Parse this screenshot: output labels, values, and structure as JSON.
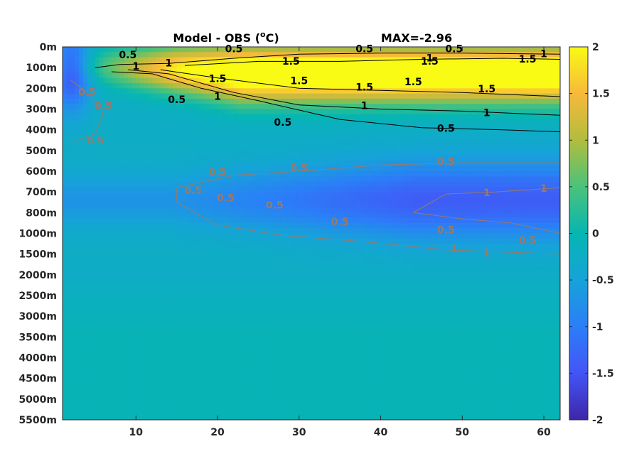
{
  "chart_data": {
    "type": "heatmap",
    "title": "Model - OBS (",
    "title_superscript": "o",
    "title_unit": "C)",
    "annotation": "MAX=-2.96",
    "y_tick_labels": [
      "0m",
      "100m",
      "200m",
      "300m",
      "400m",
      "500m",
      "600m",
      "700m",
      "800m",
      "1000m",
      "1500m",
      "2000m",
      "2500m",
      "3000m",
      "3500m",
      "4000m",
      "4500m",
      "5000m",
      "5500m"
    ],
    "xlim": [
      1,
      62
    ],
    "x_ticks": [
      10,
      20,
      30,
      40,
      50,
      60
    ],
    "clim": [
      -2,
      2
    ],
    "colorbar_ticks": [
      {
        "value": 2,
        "label": "2"
      },
      {
        "value": 1.5,
        "label": "1.5"
      },
      {
        "value": 1,
        "label": "1"
      },
      {
        "value": 0.5,
        "label": "0.5"
      },
      {
        "value": 0,
        "label": "0"
      },
      {
        "value": -0.5,
        "label": "-0.5"
      },
      {
        "value": -1,
        "label": "-1"
      },
      {
        "value": -1.5,
        "label": "-1.5"
      },
      {
        "value": -2,
        "label": "-2"
      }
    ],
    "colormap": "parula",
    "contour_colors": {
      "positive": "#000000",
      "negative": "#9a7a6a"
    },
    "contour_labels_positive": [
      {
        "x": 9,
        "level": 0.5,
        "label": "0.5"
      },
      {
        "x": 22,
        "level": 0.5,
        "label": "0.5"
      },
      {
        "x": 38,
        "level": 0.5,
        "label": "0.5"
      },
      {
        "x": 49,
        "level": 0.5,
        "label": "0.5"
      },
      {
        "x": 10,
        "level": 1,
        "label": "1"
      },
      {
        "x": 14,
        "level": 1,
        "label": "1"
      },
      {
        "x": 46,
        "level": 1,
        "label": "1"
      },
      {
        "x": 60,
        "level": 1,
        "label": "1"
      },
      {
        "x": 29,
        "level": 1.5,
        "label": "1.5"
      },
      {
        "x": 46,
        "level": 1.5,
        "label": "1.5"
      },
      {
        "x": 58,
        "level": 1.5,
        "label": "1.5"
      },
      {
        "x": 15,
        "level": 0.5,
        "label": "0.5"
      },
      {
        "x": 20,
        "level": 1.5,
        "label": "1.5"
      },
      {
        "x": 30,
        "level": 1.5,
        "label": "1.5"
      },
      {
        "x": 38,
        "level": 1.5,
        "label": "1.5"
      },
      {
        "x": 44,
        "level": 1.5,
        "label": "1.5"
      },
      {
        "x": 53,
        "level": 1.5,
        "label": "1.5"
      },
      {
        "x": 20,
        "level": 1,
        "label": "1"
      },
      {
        "x": 38,
        "level": 1,
        "label": "1"
      },
      {
        "x": 53,
        "level": 1,
        "label": "1"
      },
      {
        "x": 28,
        "level": 0.5,
        "label": "0.5"
      },
      {
        "x": 48,
        "level": 0.5,
        "label": "0.5"
      }
    ],
    "contour_labels_negative": [
      {
        "x": 4,
        "level": -0.5,
        "label": "0.5"
      },
      {
        "x": 6,
        "level": -0.5,
        "label": "0.5"
      },
      {
        "x": 5,
        "level": -0.5,
        "label": "0.5"
      },
      {
        "x": 20,
        "level": -0.5,
        "label": "0.5"
      },
      {
        "x": 30,
        "level": -0.5,
        "label": "0.5"
      },
      {
        "x": 48,
        "level": -0.5,
        "label": "0.5"
      },
      {
        "x": 17,
        "level": -0.5,
        "label": "0.5"
      },
      {
        "x": 21,
        "level": -0.5,
        "label": "0.5"
      },
      {
        "x": 27,
        "level": -0.5,
        "label": "0.5"
      },
      {
        "x": 35,
        "level": -0.5,
        "label": "0.5"
      },
      {
        "x": 48,
        "level": -0.5,
        "label": "0.5"
      },
      {
        "x": 58,
        "level": -0.5,
        "label": "0.5"
      },
      {
        "x": 49,
        "level": -1,
        "label": "1"
      },
      {
        "x": 53,
        "level": -1,
        "label": "1"
      },
      {
        "x": 53,
        "level": -1,
        "label": "1"
      },
      {
        "x": 60,
        "level": -1,
        "label": "1"
      }
    ]
  }
}
